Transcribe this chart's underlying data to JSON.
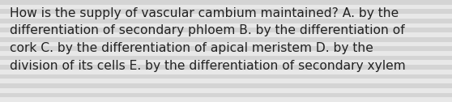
{
  "text": "How is the supply of vascular cambium maintained? A. by the\ndifferentiation of secondary phloem B. by the differentiation of\ncork C. by the differentiation of apical meristem D. by the\ndivision of its cells E. by the differentiation of secondary xylem",
  "bg_color": "#e0e0e0",
  "stripe_light": "#e8e8e8",
  "stripe_dark": "#d4d4d4",
  "text_color": "#222222",
  "font_size": 11.2,
  "fig_width": 5.58,
  "fig_height": 1.26,
  "dpi": 100,
  "n_stripes": 22
}
